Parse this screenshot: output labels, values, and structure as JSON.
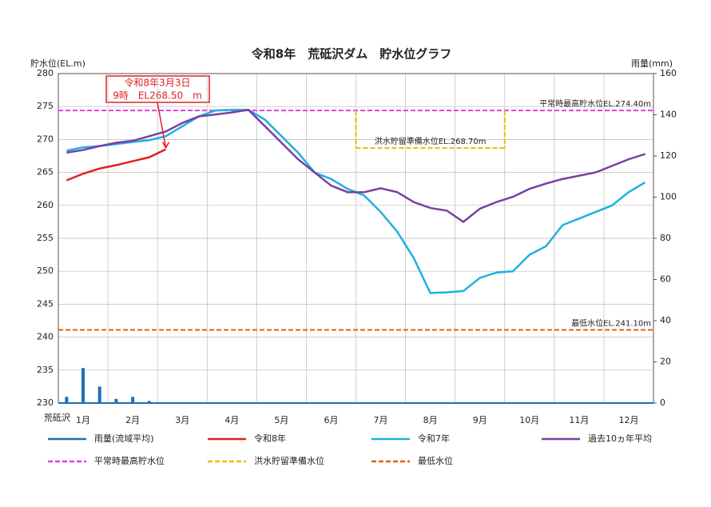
{
  "chart_data": {
    "type": "line",
    "title": "令和8年　荒砥沢ダム　貯水位グラフ",
    "ylabel": "貯水位(EL.m)",
    "y2label": "雨量(mm)",
    "xlabel": "荒砥沢",
    "categories": [
      null,
      "1月",
      null,
      null,
      "2月",
      null,
      null,
      "3月",
      null,
      null,
      "4月",
      null,
      null,
      "5月",
      null,
      null,
      "6月",
      null,
      null,
      "7月",
      null,
      null,
      "8月",
      null,
      null,
      "9月",
      null,
      null,
      "10月",
      null,
      null,
      "11月",
      null,
      null,
      "12月",
      null
    ],
    "ylim": [
      230,
      280
    ],
    "yticks": [
      230,
      235,
      240,
      245,
      250,
      255,
      260,
      265,
      270,
      275,
      280
    ],
    "y2lim": [
      0,
      160
    ],
    "y2ticks": [
      0,
      20,
      40,
      60,
      80,
      100,
      120,
      140,
      160
    ],
    "grid": true,
    "series": [
      {
        "name": "雨量(流域平均)",
        "color": "#1f6fb4",
        "axis": "y2",
        "kind": "bar",
        "values": [
          3,
          17,
          8,
          2,
          3,
          1,
          0,
          0,
          0,
          0,
          0,
          0,
          0,
          0,
          0,
          0,
          0,
          0,
          0,
          0,
          0,
          0,
          0,
          0,
          0,
          0,
          0,
          0,
          0,
          0,
          0,
          0,
          0,
          0,
          0,
          0
        ]
      },
      {
        "name": "令和8年",
        "color": "#e02020",
        "values": [
          263.8,
          264.8,
          265.6,
          266.1,
          266.7,
          267.3,
          268.5,
          null,
          null,
          null,
          null,
          null,
          null,
          null,
          null,
          null,
          null,
          null,
          null,
          null,
          null,
          null,
          null,
          null,
          null,
          null,
          null,
          null,
          null,
          null,
          null,
          null,
          null,
          null,
          null,
          null
        ]
      },
      {
        "name": "令和7年",
        "color": "#1fb0e0",
        "values": [
          268.3,
          268.8,
          269.0,
          269.3,
          269.6,
          269.9,
          270.5,
          272.0,
          273.5,
          274.4,
          274.5,
          274.5,
          273.0,
          270.5,
          268.0,
          265.0,
          264.0,
          262.5,
          261.5,
          259.0,
          256.0,
          252.0,
          246.7,
          246.8,
          247.0,
          249.0,
          249.8,
          250.0,
          252.5,
          253.8,
          257.0,
          258.0,
          259.0,
          260.0,
          262.0,
          263.5
        ]
      },
      {
        "name": "過去10ヵ年平均",
        "color": "#7b3fa0",
        "values": [
          268.0,
          268.4,
          269.0,
          269.5,
          269.8,
          270.5,
          271.2,
          272.5,
          273.5,
          273.8,
          274.1,
          274.5,
          272.0,
          269.5,
          267.0,
          265.0,
          263.0,
          262.0,
          262.0,
          262.6,
          262.0,
          260.5,
          259.6,
          259.2,
          257.5,
          259.5,
          260.5,
          261.3,
          262.5,
          263.3,
          264.0,
          264.5,
          265.0,
          266.0,
          267.0,
          267.8
        ]
      }
    ],
    "reference_lines": [
      {
        "name": "平常時最高貯水位",
        "value": 274.4,
        "color": "#e040e0",
        "label": "平常時最高貯水位EL.274.40m"
      },
      {
        "name": "洪水貯留準備水位",
        "value": 268.7,
        "color": "#f0b800",
        "label": "洪水貯留準備水位EL.268.70m",
        "from": "7月",
        "to": "9月"
      },
      {
        "name": "最低水位",
        "value": 241.1,
        "color": "#e06010",
        "label": "最低水位EL.241.10m"
      }
    ],
    "annotation": {
      "lines": [
        "令和8年3月3日",
        "9時　EL268.50　m"
      ],
      "color": "#e02020"
    }
  }
}
